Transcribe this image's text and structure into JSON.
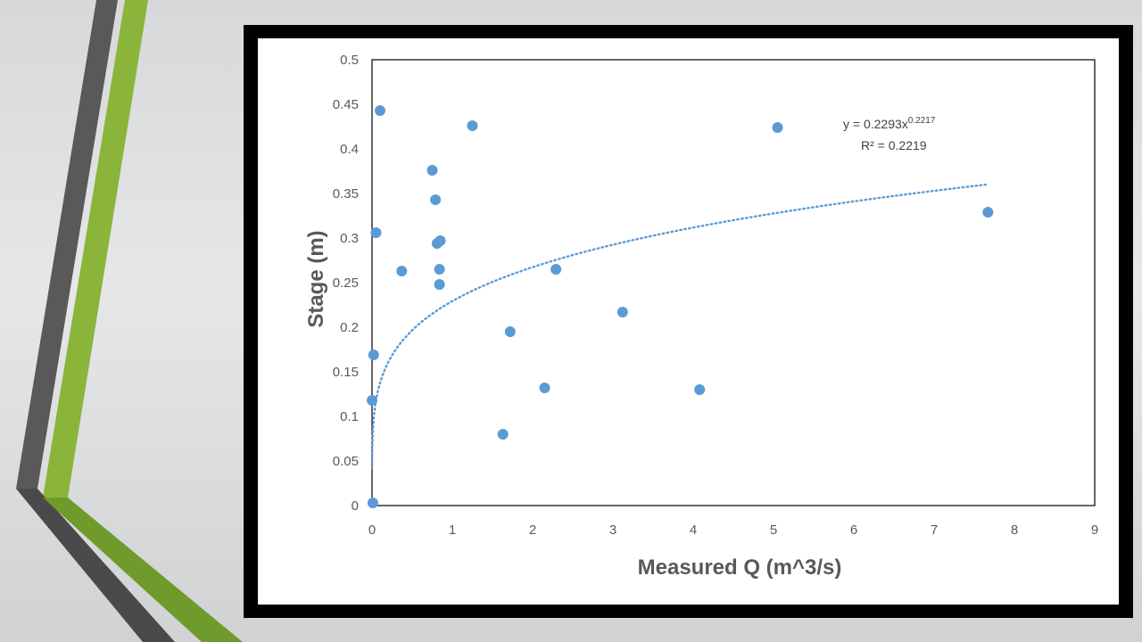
{
  "slide": {
    "accent_colors": {
      "dark": "#595959",
      "green": "#8ab53a"
    }
  },
  "chart_data": {
    "type": "scatter",
    "title": "",
    "xlabel": "Measured Q (m^3/s)",
    "ylabel": "Stage (m)",
    "xlim": [
      0,
      9
    ],
    "ylim": [
      0,
      0.5
    ],
    "x_ticks": [
      "0",
      "1",
      "2",
      "3",
      "4",
      "5",
      "6",
      "7",
      "8",
      "9"
    ],
    "y_ticks": [
      "0",
      "0.05",
      "0.1",
      "0.15",
      "0.2",
      "0.25",
      "0.3",
      "0.35",
      "0.4",
      "0.45",
      "0.5"
    ],
    "grid": false,
    "marker_color": "#5b9bd5",
    "points": [
      {
        "x": 0.1,
        "y": 0.443
      },
      {
        "x": 0.05,
        "y": 0.306
      },
      {
        "x": 0.02,
        "y": 0.169
      },
      {
        "x": 0.0,
        "y": 0.118
      },
      {
        "x": 0.01,
        "y": 0.003
      },
      {
        "x": 0.37,
        "y": 0.263
      },
      {
        "x": 0.75,
        "y": 0.376
      },
      {
        "x": 0.79,
        "y": 0.343
      },
      {
        "x": 0.81,
        "y": 0.294
      },
      {
        "x": 0.85,
        "y": 0.297
      },
      {
        "x": 0.84,
        "y": 0.265
      },
      {
        "x": 0.84,
        "y": 0.248
      },
      {
        "x": 1.25,
        "y": 0.426
      },
      {
        "x": 1.63,
        "y": 0.08
      },
      {
        "x": 1.72,
        "y": 0.195
      },
      {
        "x": 2.15,
        "y": 0.132
      },
      {
        "x": 2.29,
        "y": 0.265
      },
      {
        "x": 3.12,
        "y": 0.217
      },
      {
        "x": 4.08,
        "y": 0.13
      },
      {
        "x": 5.05,
        "y": 0.424
      },
      {
        "x": 7.67,
        "y": 0.329
      }
    ],
    "trendline": {
      "type": "power",
      "a": 0.2293,
      "b": 0.2217,
      "x_range": [
        0.0005,
        7.67
      ],
      "style": "dotted",
      "color": "#5b9bd5",
      "equation_label": "y = 0.2293x",
      "equation_exponent": "0.2217",
      "r2_label": "R² = 0.2219"
    }
  }
}
